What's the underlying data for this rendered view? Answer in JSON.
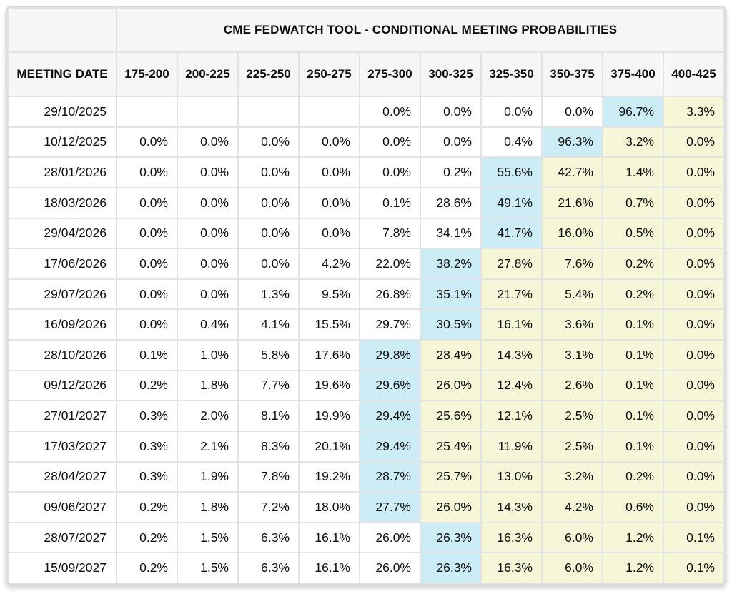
{
  "colors": {
    "highlight_blue": "#cdedf6",
    "highlight_yellow": "#f6f6d8",
    "header_bg": "#f6f6f6",
    "grid_line": "#e3e3e3",
    "outer_border": "#d9d9d9"
  },
  "chart_data": {
    "type": "table",
    "title": "CME FEDWATCH TOOL - CONDITIONAL MEETING PROBABILITIES",
    "row_header_label": "MEETING DATE",
    "columns": [
      "175-200",
      "200-225",
      "225-250",
      "250-275",
      "275-300",
      "300-325",
      "325-350",
      "350-375",
      "375-400",
      "400-425"
    ],
    "highlight_legend": {
      "b": "highest-probability cell (blue)",
      "y": "cells above highest bucket (yellow)",
      "": "no highlight"
    },
    "rows": [
      {
        "date": "29/10/2025",
        "values": [
          "",
          "",
          "",
          "",
          "0.0%",
          "0.0%",
          "0.0%",
          "0.0%",
          "96.7%",
          "3.3%"
        ],
        "highlights": [
          "",
          "",
          "",
          "",
          "",
          "",
          "",
          "",
          "b",
          "y"
        ]
      },
      {
        "date": "10/12/2025",
        "values": [
          "0.0%",
          "0.0%",
          "0.0%",
          "0.0%",
          "0.0%",
          "0.0%",
          "0.4%",
          "96.3%",
          "3.2%",
          "0.0%"
        ],
        "highlights": [
          "",
          "",
          "",
          "",
          "",
          "",
          "",
          "b",
          "y",
          "y"
        ]
      },
      {
        "date": "28/01/2026",
        "values": [
          "0.0%",
          "0.0%",
          "0.0%",
          "0.0%",
          "0.0%",
          "0.2%",
          "55.6%",
          "42.7%",
          "1.4%",
          "0.0%"
        ],
        "highlights": [
          "",
          "",
          "",
          "",
          "",
          "",
          "b",
          "y",
          "y",
          "y"
        ]
      },
      {
        "date": "18/03/2026",
        "values": [
          "0.0%",
          "0.0%",
          "0.0%",
          "0.0%",
          "0.1%",
          "28.6%",
          "49.1%",
          "21.6%",
          "0.7%",
          "0.0%"
        ],
        "highlights": [
          "",
          "",
          "",
          "",
          "",
          "",
          "b",
          "y",
          "y",
          "y"
        ]
      },
      {
        "date": "29/04/2026",
        "values": [
          "0.0%",
          "0.0%",
          "0.0%",
          "0.0%",
          "7.8%",
          "34.1%",
          "41.7%",
          "16.0%",
          "0.5%",
          "0.0%"
        ],
        "highlights": [
          "",
          "",
          "",
          "",
          "",
          "",
          "b",
          "y",
          "y",
          "y"
        ]
      },
      {
        "date": "17/06/2026",
        "values": [
          "0.0%",
          "0.0%",
          "0.0%",
          "4.2%",
          "22.0%",
          "38.2%",
          "27.8%",
          "7.6%",
          "0.2%",
          "0.0%"
        ],
        "highlights": [
          "",
          "",
          "",
          "",
          "",
          "b",
          "y",
          "y",
          "y",
          "y"
        ]
      },
      {
        "date": "29/07/2026",
        "values": [
          "0.0%",
          "0.0%",
          "1.3%",
          "9.5%",
          "26.8%",
          "35.1%",
          "21.7%",
          "5.4%",
          "0.2%",
          "0.0%"
        ],
        "highlights": [
          "",
          "",
          "",
          "",
          "",
          "b",
          "y",
          "y",
          "y",
          "y"
        ]
      },
      {
        "date": "16/09/2026",
        "values": [
          "0.0%",
          "0.4%",
          "4.1%",
          "15.5%",
          "29.7%",
          "30.5%",
          "16.1%",
          "3.6%",
          "0.1%",
          "0.0%"
        ],
        "highlights": [
          "",
          "",
          "",
          "",
          "",
          "b",
          "y",
          "y",
          "y",
          "y"
        ]
      },
      {
        "date": "28/10/2026",
        "values": [
          "0.1%",
          "1.0%",
          "5.8%",
          "17.6%",
          "29.8%",
          "28.4%",
          "14.3%",
          "3.1%",
          "0.1%",
          "0.0%"
        ],
        "highlights": [
          "",
          "",
          "",
          "",
          "b",
          "y",
          "y",
          "y",
          "y",
          "y"
        ]
      },
      {
        "date": "09/12/2026",
        "values": [
          "0.2%",
          "1.8%",
          "7.7%",
          "19.6%",
          "29.6%",
          "26.0%",
          "12.4%",
          "2.6%",
          "0.1%",
          "0.0%"
        ],
        "highlights": [
          "",
          "",
          "",
          "",
          "b",
          "y",
          "y",
          "y",
          "y",
          "y"
        ]
      },
      {
        "date": "27/01/2027",
        "values": [
          "0.3%",
          "2.0%",
          "8.1%",
          "19.9%",
          "29.4%",
          "25.6%",
          "12.1%",
          "2.5%",
          "0.1%",
          "0.0%"
        ],
        "highlights": [
          "",
          "",
          "",
          "",
          "b",
          "y",
          "y",
          "y",
          "y",
          "y"
        ]
      },
      {
        "date": "17/03/2027",
        "values": [
          "0.3%",
          "2.1%",
          "8.3%",
          "20.1%",
          "29.4%",
          "25.4%",
          "11.9%",
          "2.5%",
          "0.1%",
          "0.0%"
        ],
        "highlights": [
          "",
          "",
          "",
          "",
          "b",
          "y",
          "y",
          "y",
          "y",
          "y"
        ]
      },
      {
        "date": "28/04/2027",
        "values": [
          "0.3%",
          "1.9%",
          "7.8%",
          "19.2%",
          "28.7%",
          "25.7%",
          "13.0%",
          "3.2%",
          "0.2%",
          "0.0%"
        ],
        "highlights": [
          "",
          "",
          "",
          "",
          "b",
          "y",
          "y",
          "y",
          "y",
          "y"
        ]
      },
      {
        "date": "09/06/2027",
        "values": [
          "0.2%",
          "1.8%",
          "7.2%",
          "18.0%",
          "27.7%",
          "26.0%",
          "14.3%",
          "4.2%",
          "0.6%",
          "0.0%"
        ],
        "highlights": [
          "",
          "",
          "",
          "",
          "b",
          "y",
          "y",
          "y",
          "y",
          "y"
        ]
      },
      {
        "date": "28/07/2027",
        "values": [
          "0.2%",
          "1.5%",
          "6.3%",
          "16.1%",
          "26.0%",
          "26.3%",
          "16.3%",
          "6.0%",
          "1.2%",
          "0.1%"
        ],
        "highlights": [
          "",
          "",
          "",
          "",
          "",
          "b",
          "y",
          "y",
          "y",
          "y"
        ]
      },
      {
        "date": "15/09/2027",
        "values": [
          "0.2%",
          "1.5%",
          "6.3%",
          "16.1%",
          "26.0%",
          "26.3%",
          "16.3%",
          "6.0%",
          "1.2%",
          "0.1%"
        ],
        "highlights": [
          "",
          "",
          "",
          "",
          "",
          "b",
          "y",
          "y",
          "y",
          "y"
        ]
      }
    ]
  }
}
